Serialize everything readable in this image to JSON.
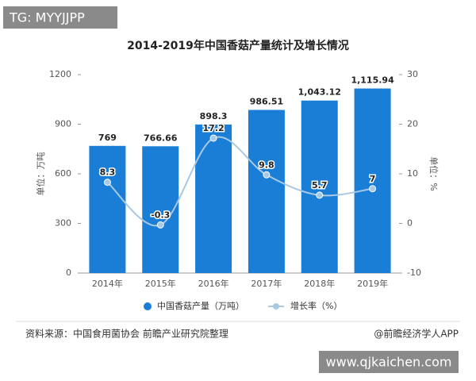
{
  "overlay": {
    "top_left": "TG: MYYJJPP",
    "bottom_right": "www.qjkaichen.com"
  },
  "chart_data": {
    "type": "bar",
    "title": "2014-2019年中国香菇产量统计及增长情况",
    "categories": [
      "2014年",
      "2015年",
      "2016年",
      "2017年",
      "2018年",
      "2019年"
    ],
    "series": [
      {
        "name": "中国香菇产量（万吨）",
        "color": "#1a7ed6",
        "values": [
          769,
          766.66,
          898.3,
          986.51,
          1043.12,
          1115.94
        ],
        "value_labels": [
          "769",
          "766.66",
          "898.3",
          "986.51",
          "1,043.12",
          "1,115.94"
        ]
      },
      {
        "name": "增长率（%）",
        "color": "#a8c9e3",
        "type": "line",
        "axis": "y2",
        "values": [
          8.3,
          -0.3,
          17.2,
          9.8,
          5.7,
          7
        ]
      }
    ],
    "ylim": [
      0,
      1200
    ],
    "yticks": [
      0,
      300,
      600,
      900,
      1200
    ],
    "y2lim": [
      -10,
      30
    ],
    "y2ticks": [
      -10,
      0,
      10,
      20,
      30
    ],
    "ylabel": "单位：万吨",
    "y2label": "单位：%"
  },
  "footer": {
    "source": "资料来源：中国食用菌协会 前瞻产业研究院整理",
    "credit": "@前瞻经济学人APP"
  }
}
